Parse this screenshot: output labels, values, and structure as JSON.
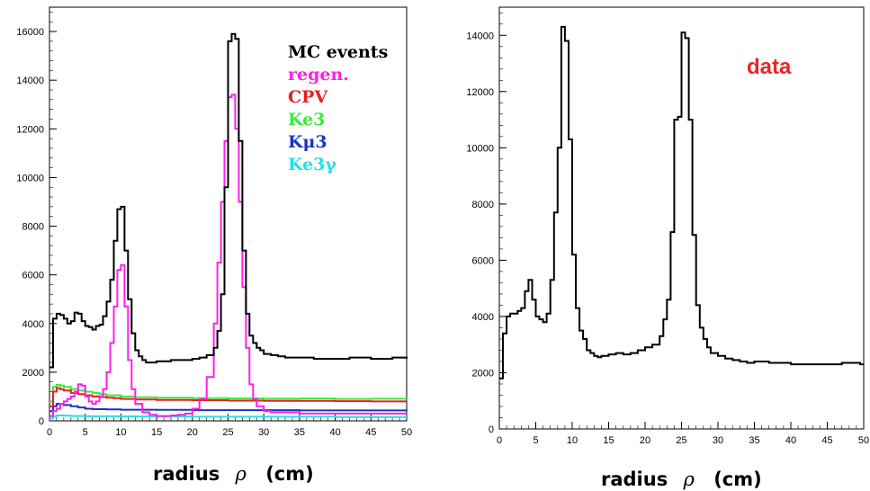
{
  "chart_data": [
    {
      "type": "line",
      "step": true,
      "xlim": [
        0,
        50
      ],
      "ylim": [
        0,
        17000
      ],
      "x_ticks": [
        0,
        5,
        10,
        15,
        20,
        25,
        30,
        35,
        40,
        45,
        50
      ],
      "y_ticks": [
        0,
        2000,
        4000,
        6000,
        8000,
        10000,
        12000,
        14000,
        16000
      ],
      "xlabel_text": "radius",
      "xlabel_symbol": "ρ",
      "xlabel_unit": "(cm)",
      "legend_position": "top-right",
      "legend_header": "MC events",
      "colors": {
        "mc": "#000000",
        "regen": "#ff1fe8",
        "cpv": "#ee1c1c",
        "ke3": "#3de93d",
        "kmu3": "#1a33c8",
        "ke3g": "#22e3e3"
      },
      "series": [
        {
          "name": "MC events",
          "key": "mc",
          "x": [
            0,
            0.5,
            1,
            1.5,
            2,
            2.5,
            3,
            3.5,
            4,
            4.5,
            5,
            5.5,
            6,
            6.5,
            7,
            7.5,
            8,
            8.5,
            9,
            9.5,
            10,
            10.5,
            11,
            11.5,
            12,
            12.5,
            13,
            13.5,
            14,
            15,
            16,
            17,
            18,
            19,
            20,
            21,
            22,
            23,
            23.5,
            24,
            24.5,
            25,
            25.5,
            26,
            26.5,
            27,
            27.5,
            28,
            28.5,
            29,
            29.5,
            30,
            31,
            32,
            33,
            35,
            37,
            40,
            42,
            45,
            48,
            50
          ],
          "y": [
            2200,
            4200,
            4400,
            4350,
            4200,
            4000,
            4100,
            4450,
            4400,
            4100,
            3900,
            3850,
            3750,
            3900,
            3950,
            4300,
            4900,
            5800,
            7400,
            8700,
            8800,
            7000,
            5000,
            3600,
            2900,
            2650,
            2500,
            2400,
            2400,
            2450,
            2450,
            2500,
            2500,
            2500,
            2550,
            2600,
            2700,
            3000,
            3700,
            5200,
            9600,
            15600,
            15900,
            15700,
            11500,
            7000,
            4400,
            3500,
            3200,
            3000,
            2900,
            2750,
            2700,
            2650,
            2600,
            2600,
            2550,
            2550,
            2600,
            2550,
            2600,
            2550
          ]
        },
        {
          "name": "regen.",
          "key": "regen",
          "x": [
            0,
            0.5,
            1,
            1.5,
            2,
            2.5,
            3,
            3.5,
            4,
            4.5,
            5,
            5.5,
            6,
            6.5,
            7,
            7.5,
            8,
            8.5,
            9,
            9.5,
            10,
            10.5,
            11,
            11.5,
            12,
            13,
            14,
            15,
            16,
            17,
            18,
            19,
            20,
            21,
            22,
            23,
            23.5,
            24,
            24.5,
            25,
            25.5,
            26,
            26.5,
            27,
            27.5,
            28,
            28.5,
            29,
            30,
            31,
            32,
            35,
            40,
            45,
            50
          ],
          "y": [
            200,
            400,
            500,
            700,
            800,
            900,
            1000,
            1200,
            1500,
            1450,
            1000,
            800,
            700,
            800,
            1000,
            1300,
            2000,
            3200,
            4700,
            6200,
            6400,
            4700,
            2500,
            1300,
            700,
            350,
            250,
            200,
            200,
            220,
            250,
            300,
            500,
            900,
            1800,
            4000,
            6500,
            9000,
            11500,
            13300,
            13400,
            12000,
            9000,
            5500,
            3000,
            1500,
            900,
            600,
            400,
            350,
            350,
            300,
            300,
            300,
            300
          ]
        },
        {
          "name": "CPV",
          "key": "cpv",
          "x": [
            0,
            0.5,
            1,
            1.5,
            2,
            3,
            4,
            5,
            6,
            7,
            8,
            9,
            10,
            12,
            15,
            20,
            25,
            30,
            35,
            40,
            45,
            50
          ],
          "y": [
            600,
            1200,
            1350,
            1300,
            1250,
            1150,
            1100,
            1050,
            1000,
            980,
            950,
            930,
            900,
            880,
            860,
            850,
            830,
            820,
            820,
            810,
            800,
            800
          ]
        },
        {
          "name": "Ke3",
          "key": "ke3",
          "x": [
            0,
            0.5,
            1,
            1.5,
            2,
            3,
            4,
            5,
            6,
            7,
            8,
            10,
            12,
            15,
            20,
            25,
            30,
            35,
            40,
            45,
            50
          ],
          "y": [
            800,
            1400,
            1480,
            1450,
            1400,
            1300,
            1250,
            1200,
            1150,
            1100,
            1050,
            1000,
            970,
            950,
            930,
            920,
            910,
            920,
            900,
            910,
            900
          ]
        },
        {
          "name": "Kμ3",
          "key": "kmu3",
          "x": [
            0,
            0.5,
            1,
            2,
            3,
            4,
            5,
            6,
            8,
            10,
            15,
            20,
            25,
            30,
            35,
            40,
            45,
            50
          ],
          "y": [
            400,
            600,
            700,
            650,
            600,
            550,
            500,
            480,
            470,
            460,
            450,
            440,
            440,
            440,
            430,
            430,
            430,
            420
          ]
        },
        {
          "name": "Ke3γ",
          "key": "ke3g",
          "x": [
            0,
            0.5,
            1,
            2,
            3,
            5,
            10,
            15,
            20,
            25,
            30,
            35,
            40,
            45,
            50
          ],
          "y": [
            100,
            180,
            220,
            210,
            200,
            190,
            180,
            180,
            170,
            170,
            170,
            170,
            160,
            160,
            160
          ]
        }
      ]
    },
    {
      "type": "line",
      "step": true,
      "xlim": [
        0,
        50
      ],
      "ylim": [
        0,
        15000
      ],
      "x_ticks": [
        0,
        5,
        10,
        15,
        20,
        25,
        30,
        35,
        40,
        45,
        50
      ],
      "y_ticks": [
        0,
        2000,
        4000,
        6000,
        8000,
        10000,
        12000,
        14000
      ],
      "xlabel_text": "radius",
      "xlabel_symbol": "ρ",
      "xlabel_unit": "(cm)",
      "annotation": "data",
      "series": [
        {
          "key": "data",
          "x": [
            0,
            0.5,
            1,
            1.5,
            2,
            2.5,
            3,
            3.5,
            4,
            4.5,
            5,
            5.5,
            6,
            6.5,
            7,
            7.5,
            8,
            8.5,
            9,
            9.5,
            10,
            10.5,
            11,
            11.5,
            12,
            12.5,
            13,
            13.5,
            14,
            15,
            16,
            17,
            18,
            19,
            20,
            21,
            22,
            22.5,
            23,
            23.5,
            24,
            24.5,
            25,
            25.5,
            26,
            26.5,
            27,
            27.5,
            28,
            28.5,
            29,
            30,
            31,
            32,
            33,
            34,
            35,
            37,
            40,
            42,
            45,
            47,
            49.5,
            50
          ],
          "y": [
            1800,
            3400,
            4000,
            4100,
            4100,
            4200,
            4300,
            4900,
            5300,
            4600,
            4000,
            3900,
            3800,
            4100,
            5300,
            7700,
            10000,
            14300,
            13800,
            10300,
            6200,
            4300,
            3500,
            3200,
            2800,
            2700,
            2600,
            2550,
            2600,
            2650,
            2700,
            2650,
            2700,
            2800,
            2900,
            3000,
            3300,
            3900,
            4600,
            7000,
            11000,
            11100,
            14100,
            13900,
            11000,
            6900,
            4400,
            3600,
            3200,
            2900,
            2700,
            2600,
            2500,
            2450,
            2400,
            2350,
            2400,
            2350,
            2300,
            2300,
            2300,
            2350,
            2300,
            2300
          ]
        }
      ]
    }
  ]
}
